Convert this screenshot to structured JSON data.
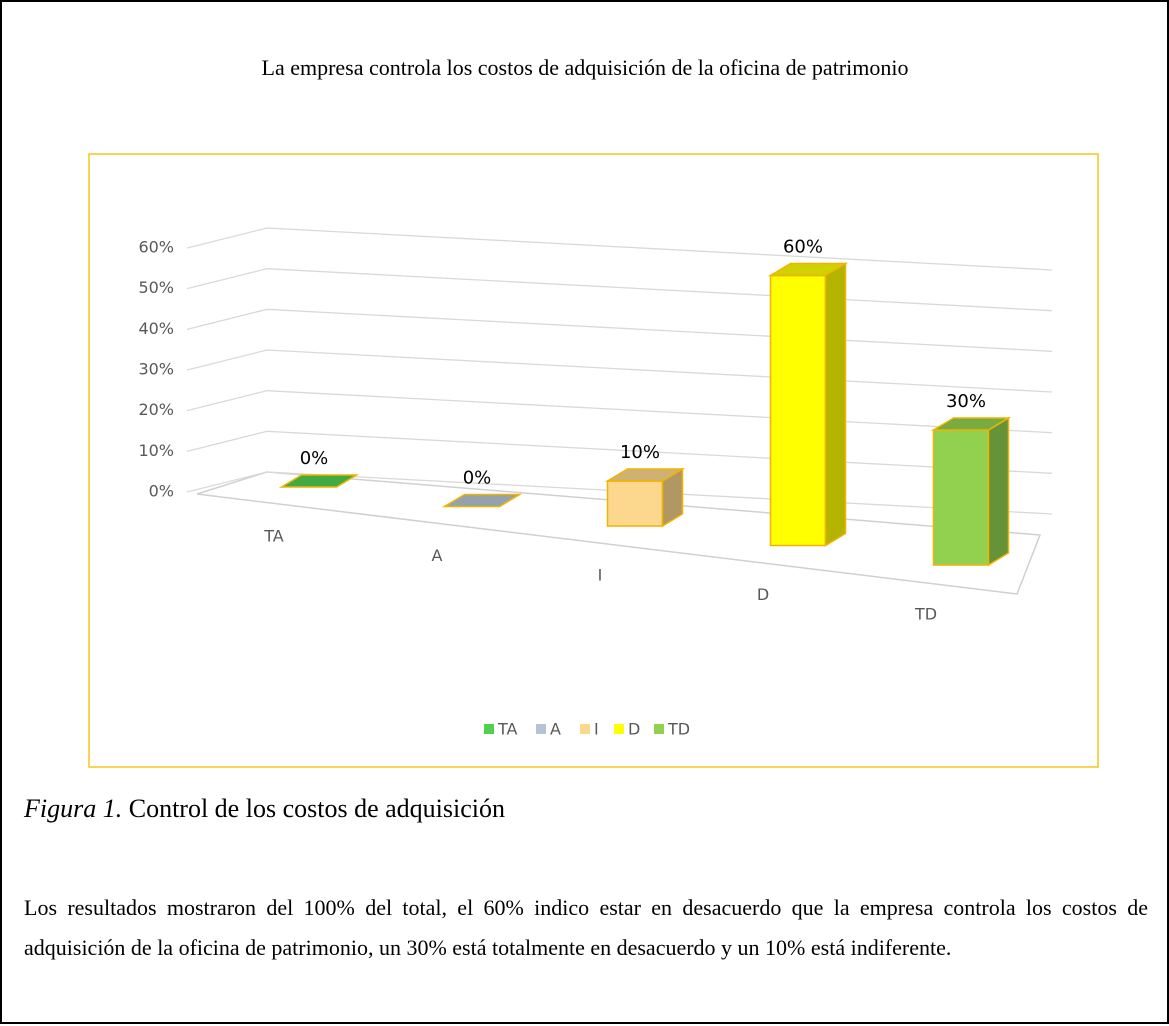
{
  "chart_data": {
    "type": "bar3d",
    "title": "La empresa controla los costos de adquisición de la oficina de patrimonio",
    "categories": [
      "TA",
      "A",
      "I",
      "D",
      "TD"
    ],
    "values": [
      0,
      0,
      10,
      60,
      30
    ],
    "value_labels": [
      "0%",
      "0%",
      "10%",
      "60%",
      "30%"
    ],
    "colors": [
      "#4fd14f",
      "#b4c4d4",
      "#fcd88e",
      "#ffff00",
      "#92d050"
    ],
    "ylim": [
      0,
      60
    ],
    "yticks": [
      {
        "value": 0,
        "label": "0%"
      },
      {
        "value": 10,
        "label": "10%"
      },
      {
        "value": 20,
        "label": "20%"
      },
      {
        "value": 30,
        "label": "30%"
      },
      {
        "value": 40,
        "label": "40%"
      },
      {
        "value": 50,
        "label": "50%"
      },
      {
        "value": 60,
        "label": "60%"
      }
    ],
    "grid": true,
    "legend": "bottom"
  },
  "caption": {
    "label": "Figura 1.",
    "text": "Control de los costos de adquisición"
  },
  "paragraph": "Los resultados mostraron del 100% del total, el 60% indico estar en desacuerdo que la empresa controla los costos de adquisición de la oficina de patrimonio, un 30% está totalmente en desacuerdo y un 10% está indiferente."
}
